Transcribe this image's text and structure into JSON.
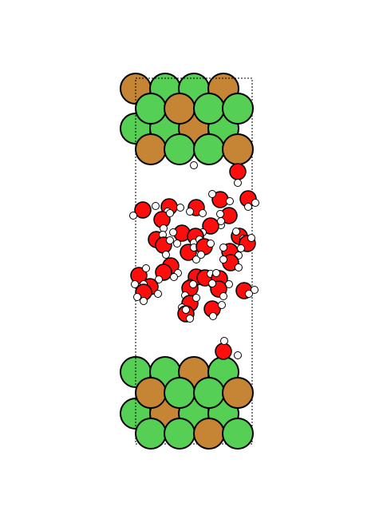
{
  "colors": {
    "background": "#ffffff",
    "slab_green": "#55d055",
    "slab_orange": "#c68435",
    "oxygen": "#ff0d0d",
    "hydrogen": "#ffffff",
    "outline": "#000000",
    "cell_boundary": "#000000"
  },
  "atom_types": [
    "green-metal-atom",
    "orange-metal-atom",
    "oxygen-atom",
    "hydrogen-atom"
  ]
}
